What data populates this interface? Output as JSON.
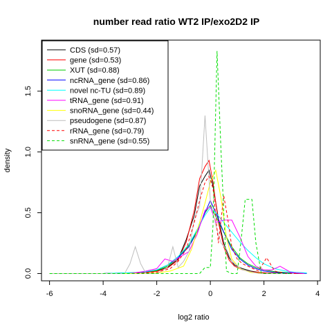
{
  "chart_data": {
    "type": "line",
    "title": "number read ratio WT2 IP/exo2D2 IP",
    "xlabel": "log2 ratio",
    "ylabel": "density",
    "xlim": [
      -6.3,
      4.1
    ],
    "ylim": [
      -0.06,
      1.92
    ],
    "x_ticks": [
      -6,
      -4,
      -2,
      0,
      2,
      4
    ],
    "y_ticks": [
      0.0,
      0.5,
      1.0,
      1.5
    ],
    "x_tick_labels": [
      "-6",
      "-4",
      "-2",
      "0",
      "2",
      "4"
    ],
    "y_tick_labels": [
      "0.0",
      "0.5",
      "1.0",
      "1.5"
    ],
    "legend_position": "top-left",
    "grid": false,
    "series": [
      {
        "name": "CDS (sd=0.57)",
        "color": "#000000",
        "dash": "solid",
        "x": [
          -6,
          -5,
          -4,
          -3.5,
          -3,
          -2.5,
          -2,
          -1.6,
          -1.2,
          -0.9,
          -0.6,
          -0.4,
          -0.2,
          -0.05,
          0.1,
          0.3,
          0.5,
          0.7,
          0.9,
          1.2,
          1.5,
          1.8,
          2.1,
          2.5,
          3,
          3.5
        ],
        "y": [
          0,
          0,
          0,
          0.003,
          0.006,
          0.01,
          0.02,
          0.05,
          0.12,
          0.28,
          0.48,
          0.72,
          0.8,
          0.85,
          0.72,
          0.45,
          0.25,
          0.13,
          0.07,
          0.04,
          0.02,
          0.01,
          0.005,
          0.002,
          0.001,
          0
        ]
      },
      {
        "name": "gene (sd=0.53)",
        "color": "#ff0000",
        "dash": "solid",
        "x": [
          -6,
          -5,
          -4,
          -3.5,
          -3,
          -2.5,
          -2,
          -1.6,
          -1.2,
          -0.9,
          -0.6,
          -0.4,
          -0.2,
          -0.05,
          0.1,
          0.3,
          0.5,
          0.7,
          0.9,
          1.2,
          1.5,
          1.8,
          2.1,
          2.5,
          3,
          3.5
        ],
        "y": [
          0,
          0,
          0,
          0.002,
          0.005,
          0.008,
          0.018,
          0.045,
          0.11,
          0.26,
          0.52,
          0.78,
          0.88,
          0.93,
          0.75,
          0.42,
          0.22,
          0.11,
          0.06,
          0.03,
          0.015,
          0.008,
          0.004,
          0.002,
          0.001,
          0
        ]
      },
      {
        "name": "XUT (sd=0.88)",
        "color": "#00cc00",
        "dash": "solid",
        "x": [
          -6,
          -5,
          -4,
          -3.5,
          -3,
          -2.5,
          -2,
          -1.6,
          -1.2,
          -0.8,
          -0.5,
          -0.2,
          0,
          0.2,
          0.5,
          0.8,
          1.1,
          1.4,
          1.7,
          2,
          2.4,
          2.8,
          3.2,
          3.6
        ],
        "y": [
          0,
          0,
          0,
          0.002,
          0.005,
          0.01,
          0.025,
          0.06,
          0.13,
          0.23,
          0.35,
          0.5,
          0.56,
          0.47,
          0.34,
          0.22,
          0.13,
          0.08,
          0.05,
          0.03,
          0.015,
          0.008,
          0.004,
          0.002
        ]
      },
      {
        "name": "ncRNA_gene (sd=0.86)",
        "color": "#0000ff",
        "dash": "solid",
        "x": [
          -6,
          -5,
          -4,
          -3.5,
          -3,
          -2.5,
          -2,
          -1.6,
          -1.2,
          -0.8,
          -0.5,
          -0.2,
          0,
          0.2,
          0.5,
          0.8,
          1.1,
          1.4,
          1.7,
          2,
          2.4,
          2.8,
          3.2,
          3.6
        ],
        "y": [
          0,
          0,
          0,
          0.002,
          0.005,
          0.01,
          0.03,
          0.07,
          0.13,
          0.22,
          0.34,
          0.5,
          0.6,
          0.5,
          0.34,
          0.2,
          0.12,
          0.07,
          0.04,
          0.02,
          0.01,
          0.005,
          0.003,
          0.001
        ]
      },
      {
        "name": "novel nc-TU (sd=0.89)",
        "color": "#00ffff",
        "dash": "solid",
        "x": [
          -6,
          -5,
          -4,
          -3.5,
          -3,
          -2.5,
          -2,
          -1.6,
          -1.2,
          -0.8,
          -0.5,
          -0.2,
          0,
          0.2,
          0.5,
          0.8,
          1.1,
          1.4,
          1.7,
          2,
          2.4,
          2.8,
          3.2,
          3.6
        ],
        "y": [
          0,
          0,
          0,
          0.003,
          0.006,
          0.012,
          0.03,
          0.07,
          0.14,
          0.24,
          0.36,
          0.48,
          0.54,
          0.5,
          0.42,
          0.34,
          0.26,
          0.19,
          0.13,
          0.08,
          0.04,
          0.02,
          0.01,
          0.005
        ]
      },
      {
        "name": "tRNA_gene (sd=0.91)",
        "color": "#ff00ff",
        "dash": "solid",
        "x": [
          -6,
          -4,
          -3,
          -2.4,
          -2,
          -1.7,
          -1.4,
          -1.1,
          -0.8,
          -0.5,
          -0.2,
          0,
          0.2,
          0.5,
          0.8,
          1.1,
          1.4,
          1.7,
          2,
          2.3,
          2.6,
          3,
          3.5
        ],
        "y": [
          0,
          0,
          0,
          0.02,
          0.04,
          0.12,
          0.1,
          0.14,
          0.18,
          0.32,
          0.52,
          0.55,
          0.42,
          0.44,
          0.44,
          0.3,
          0.14,
          0.06,
          0.03,
          0.03,
          0.06,
          0.01,
          0
        ]
      },
      {
        "name": "snoRNA_gene (sd=0.44)",
        "color": "#ffff00",
        "dash": "solid",
        "x": [
          -6,
          -3,
          -2,
          -1.5,
          -1,
          -0.7,
          -0.4,
          -0.2,
          0,
          0.2,
          0.4,
          0.6,
          0.8,
          1.1,
          1.5,
          2,
          3
        ],
        "y": [
          0,
          0,
          0.005,
          0.02,
          0.06,
          0.2,
          0.42,
          0.58,
          0.75,
          0.85,
          0.62,
          0.3,
          0.12,
          0.04,
          0.01,
          0,
          0
        ]
      },
      {
        "name": "pseudogene (sd=0.87)",
        "color": "#bebebe",
        "dash": "solid",
        "x": [
          -6,
          -4,
          -3.2,
          -3,
          -2.8,
          -2.6,
          -2.4,
          -2,
          -1.6,
          -1.4,
          -1.2,
          -1,
          -0.8,
          -0.6,
          -0.4,
          -0.2,
          0,
          0.2,
          0.4,
          0.6,
          0.8,
          1.2,
          1.8,
          2.4,
          3.2
        ],
        "y": [
          0,
          0,
          0,
          0.08,
          0.22,
          0.08,
          0,
          0,
          0.05,
          0.22,
          0.05,
          0.1,
          0.18,
          0.45,
          0.55,
          1.3,
          0.6,
          0.4,
          0.25,
          0.2,
          0.1,
          0.03,
          0,
          0,
          0
        ]
      },
      {
        "name": "rRNA_gene (sd=0.79)",
        "color": "#ff0000",
        "dash": "dashed",
        "x": [
          -6,
          -3,
          -2,
          -1.5,
          -1.2,
          -0.9,
          -0.6,
          -0.4,
          -0.2,
          -0.05,
          0.1,
          0.3,
          0.5,
          0.65,
          0.8,
          1,
          1.2,
          1.5,
          1.8,
          2.1,
          2.4,
          2.8,
          3.2
        ],
        "y": [
          0,
          0,
          0.01,
          0.04,
          0.1,
          0.2,
          0.42,
          0.6,
          0.75,
          0.8,
          0.7,
          0.25,
          0.64,
          0.45,
          0.22,
          0.12,
          0.08,
          0.05,
          0.02,
          0.13,
          0.02,
          0,
          0
        ]
      },
      {
        "name": "snRNA_gene (sd=0.55)",
        "color": "#00dd00",
        "dash": "dashed",
        "x": [
          -6,
          -3,
          -1,
          -0.4,
          -0.2,
          0,
          0.1,
          0.25,
          0.4,
          0.6,
          0.8,
          1,
          1.15,
          1.3,
          1.55,
          1.7,
          1.9,
          2.2,
          3
        ],
        "y": [
          0,
          0,
          0,
          0,
          0.05,
          0.05,
          0.4,
          1.83,
          1.0,
          0.02,
          0,
          0,
          0.28,
          0.61,
          0.61,
          0.25,
          0,
          0,
          0
        ]
      }
    ]
  }
}
